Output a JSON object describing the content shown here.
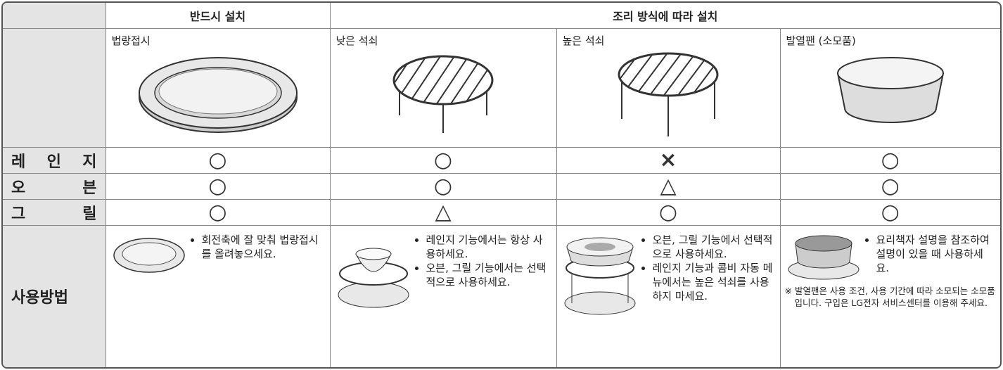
{
  "header": {
    "groups": [
      "반드시 설치",
      "조리 방식에 따라 설치"
    ]
  },
  "items": [
    "법랑접시",
    "낮은 석쇠",
    "높은 석쇠",
    "발열팬 (소모품)"
  ],
  "rows": [
    {
      "label": "레 인 지",
      "marks": [
        "○",
        "○",
        "×",
        "○"
      ]
    },
    {
      "label": "오 븐",
      "marks": [
        "○",
        "○",
        "△",
        "○"
      ]
    },
    {
      "label": "그 릴",
      "marks": [
        "○",
        "△",
        "○",
        "○"
      ]
    }
  ],
  "usage": {
    "label": "사용방법",
    "items": [
      [
        "회전축에 잘 맞춰 법랑접시를 올려놓으세요."
      ],
      [
        "레인지 기능에서는 항상 사용하세요.",
        "오븐, 그릴 기능에서는 선택적으로 사용하세요."
      ],
      [
        "오븐, 그릴 기능에서 선택적으로 사용하세요.",
        "레인지 기능과 콤비 자동 메뉴에서는 높은 석쇠를 사용하지 마세요."
      ],
      [
        "요리책자 설명을 참조하여 설명이 있을 때 사용하세요."
      ]
    ],
    "note": "※ 발열팬은 사용 조건, 사용 기간에 따라 소모되는 소모품입니다. 구입은 LG전자 서비스센터를 이용해 주세요."
  }
}
